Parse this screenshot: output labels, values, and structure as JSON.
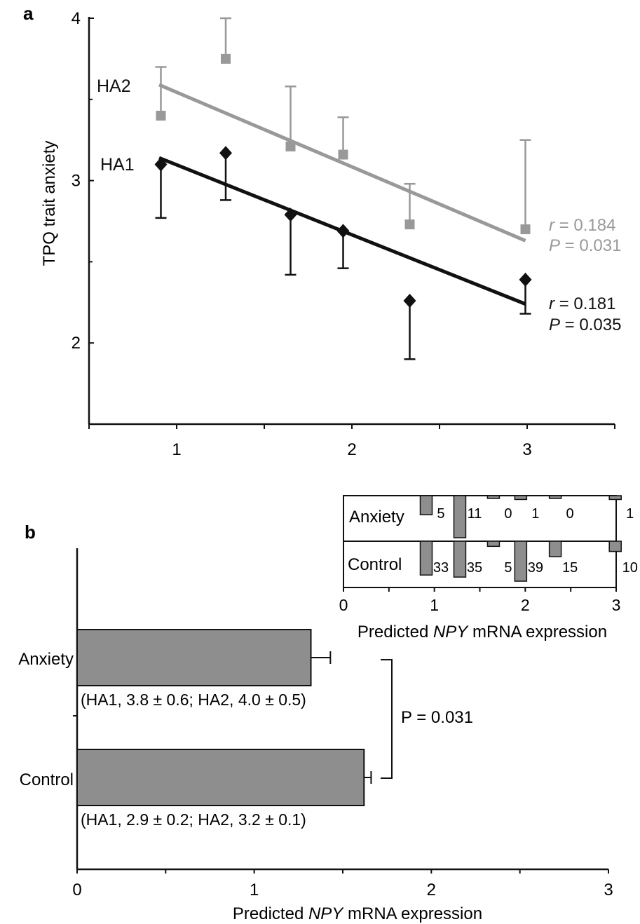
{
  "panel_a": {
    "letter": "a",
    "ylabel": "TPQ trait anxiety",
    "label_ha2": "HA2",
    "label_ha1": "HA1",
    "stats_ha2": {
      "r_sym": "r",
      "r_text": " = 0.184",
      "p_sym": "P",
      "p_text": " = 0.031"
    },
    "stats_ha1": {
      "r_sym": "r",
      "r_text": " = 0.181",
      "p_sym": "P",
      "p_text": " = 0.035"
    }
  },
  "panel_b": {
    "letter": "b",
    "xlabel_pre": "Predicted ",
    "xlabel_gene": "NPY",
    "xlabel_post": " mRNA expression",
    "cat_anxiety": "Anxiety",
    "cat_control": "Control",
    "anno_anxiety": "(HA1, 3.8 ± 0.6; HA2, 4.0 ± 0.5)",
    "anno_control": "(HA1, 2.9 ± 0.2; HA2, 3.2 ± 0.1)",
    "pvalue": "P = 0.031"
  },
  "inset": {
    "row_anxiety": "Anxiety",
    "row_control": "Control",
    "xlabel_pre": "Predicted ",
    "xlabel_gene": "NPY",
    "xlabel_post": " mRNA expression"
  },
  "colors": {
    "ha1": "#111111",
    "ha2": "#999999",
    "bar": "#8e8e8e",
    "axis": "#111111"
  },
  "chart_data": [
    {
      "type": "scatter",
      "panel": "a",
      "xlim": [
        0.5,
        3.5
      ],
      "ylim": [
        1.5,
        4
      ],
      "xticks": [
        "1",
        "2",
        "3"
      ],
      "yticks": [
        "2",
        "3",
        "4"
      ],
      "ylabel": "TPQ trait anxiety",
      "series": [
        {
          "name": "HA2",
          "marker": "square",
          "x": [
            0.91,
            1.28,
            1.65,
            1.95,
            2.33,
            2.99
          ],
          "y": [
            3.4,
            3.75,
            3.21,
            3.16,
            2.73,
            2.7
          ],
          "err_upper": [
            3.7,
            4.0,
            3.58,
            3.39,
            2.98,
            3.25
          ],
          "fit": {
            "x": [
              0.9,
              2.99
            ],
            "y": [
              3.59,
              2.63
            ]
          },
          "r": 0.184,
          "P": 0.031
        },
        {
          "name": "HA1",
          "marker": "diamond",
          "x": [
            0.91,
            1.28,
            1.65,
            1.95,
            2.33,
            2.99
          ],
          "y": [
            3.1,
            3.17,
            2.79,
            2.69,
            2.26,
            2.39
          ],
          "err_lower": [
            2.77,
            2.88,
            2.42,
            2.46,
            1.9,
            2.18
          ],
          "fit": {
            "x": [
              0.9,
              2.99
            ],
            "y": [
              3.14,
              2.24
            ]
          },
          "r": 0.181,
          "P": 0.035
        }
      ]
    },
    {
      "type": "bar",
      "orientation": "horizontal",
      "panel": "b",
      "categories": [
        "Anxiety",
        "Control"
      ],
      "values": [
        1.32,
        1.62
      ],
      "errors": [
        0.11,
        0.04
      ],
      "xlim": [
        0,
        3
      ],
      "xticks": [
        "0",
        "1",
        "2",
        "3"
      ],
      "xlabel": "Predicted NPY mRNA expression",
      "annotations": [
        "(HA1, 3.8 ± 0.6; HA2, 4.0 ± 0.5)",
        "(HA1, 2.9 ± 0.2; HA2, 3.2 ± 0.1)"
      ],
      "bracket_label": "P = 0.031"
    },
    {
      "type": "bar",
      "panel": "b-inset",
      "xlim": [
        0,
        3
      ],
      "xticks": [
        "0",
        "1",
        "2",
        "3"
      ],
      "xlabel": "Predicted NPY mRNA expression",
      "bin_centers": [
        0.91,
        1.28,
        1.65,
        1.95,
        2.33,
        2.99
      ],
      "series": [
        {
          "name": "Anxiety",
          "counts": [
            5,
            11,
            0,
            1,
            0,
            1
          ]
        },
        {
          "name": "Control",
          "counts": [
            33,
            35,
            5,
            39,
            15,
            10
          ]
        }
      ]
    }
  ]
}
